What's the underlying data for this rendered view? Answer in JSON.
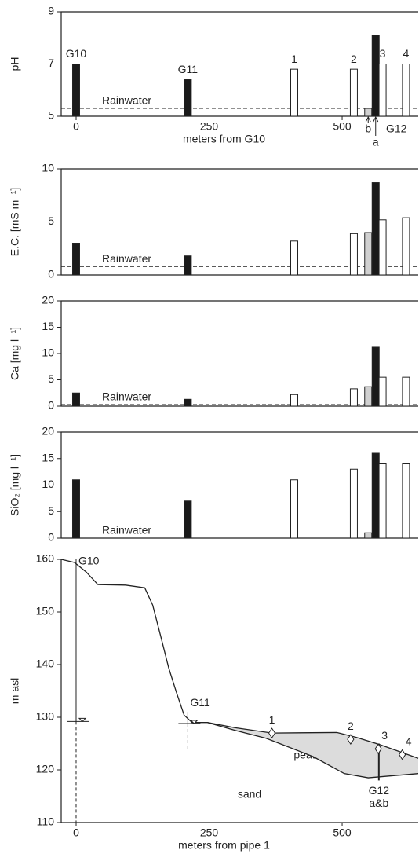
{
  "chart_data": [
    {
      "type": "bar",
      "ylabel": "pH",
      "xlabel": "meters from G10",
      "xlim": [
        -28,
        643
      ],
      "xticks": [
        0,
        250,
        500
      ],
      "ylim": [
        5,
        9
      ],
      "yticks": [
        5,
        7,
        9
      ],
      "x": [
        0,
        210,
        410,
        522,
        549,
        563,
        576,
        620
      ],
      "values": [
        7.0,
        6.4,
        6.8,
        6.8,
        5.3,
        8.1,
        7.0,
        7.0
      ],
      "colors": [
        "#1a1a1a",
        "#1a1a1a",
        "#ffffff",
        "#ffffff",
        "#d0d0d0",
        "#1a1a1a",
        "#ffffff",
        "#ffffff"
      ],
      "bar_labels": [
        "G10",
        "G11",
        "1",
        "2",
        null,
        null,
        "3",
        "4"
      ],
      "below_labels": [
        null,
        null,
        null,
        null,
        "b",
        "a",
        null,
        null
      ],
      "group_label": "G12",
      "rainwater": {
        "label": "Rainwater",
        "value": 5.3
      }
    },
    {
      "type": "bar",
      "ylabel": "E.C. [mS m⁻¹]",
      "xlim": [
        -28,
        643
      ],
      "ylim": [
        0,
        10
      ],
      "yticks": [
        0,
        5,
        10
      ],
      "x": [
        0,
        210,
        410,
        522,
        549,
        563,
        576,
        620
      ],
      "values": [
        3.0,
        1.8,
        3.2,
        3.9,
        4.0,
        8.7,
        5.2,
        5.4
      ],
      "colors": [
        "#1a1a1a",
        "#1a1a1a",
        "#ffffff",
        "#ffffff",
        "#d0d0d0",
        "#1a1a1a",
        "#ffffff",
        "#ffffff"
      ],
      "rainwater": {
        "label": "Rainwater",
        "value": 0.8
      }
    },
    {
      "type": "bar",
      "ylabel": "Ca [mg l⁻¹]",
      "xlim": [
        -28,
        643
      ],
      "ylim": [
        0,
        20
      ],
      "yticks": [
        0,
        5,
        10,
        15,
        20
      ],
      "x": [
        0,
        210,
        410,
        522,
        549,
        563,
        576,
        620
      ],
      "values": [
        2.5,
        1.3,
        2.2,
        3.3,
        3.7,
        11.2,
        5.5,
        5.5
      ],
      "colors": [
        "#1a1a1a",
        "#1a1a1a",
        "#ffffff",
        "#ffffff",
        "#d0d0d0",
        "#1a1a1a",
        "#ffffff",
        "#ffffff"
      ],
      "rainwater": {
        "label": "Rainwater",
        "value": 0.3
      }
    },
    {
      "type": "bar",
      "ylabel": "SiO₂ [mg l⁻¹]",
      "xlim": [
        -28,
        643
      ],
      "ylim": [
        0,
        20
      ],
      "yticks": [
        0,
        5,
        10,
        15,
        20
      ],
      "x": [
        0,
        210,
        410,
        522,
        549,
        563,
        576,
        620
      ],
      "values": [
        11,
        7,
        11,
        13,
        1,
        16,
        14,
        14
      ],
      "colors": [
        "#1a1a1a",
        "#1a1a1a",
        "#ffffff",
        "#ffffff",
        "#d0d0d0",
        "#1a1a1a",
        "#ffffff",
        "#ffffff"
      ],
      "rainwater": {
        "label": "Rainwater",
        "value": 0
      }
    },
    {
      "type": "profile",
      "ylabel": "m asl",
      "xlabel": "meters from pipe 1",
      "xlim": [
        -28,
        643
      ],
      "xticks": [
        0,
        250,
        500
      ],
      "ylim": [
        110,
        160
      ],
      "yticks": [
        110,
        120,
        130,
        140,
        150,
        160
      ],
      "surface": {
        "x": [
          -28,
          -3,
          19,
          41,
          93,
          129,
          144,
          159,
          174,
          188,
          203,
          218,
          247,
          299,
          368,
          490,
          526,
          571,
          643
        ],
        "y": [
          160,
          159.4,
          157.6,
          155.2,
          155.1,
          154.6,
          151.3,
          145.4,
          139.4,
          134.9,
          130.4,
          129,
          129,
          128,
          127,
          127.1,
          126.2,
          124.8,
          122.2
        ]
      },
      "peat_base": {
        "x": [
          247,
          299,
          357,
          446,
          504,
          549,
          643
        ],
        "y": [
          129,
          127.5,
          126,
          122.5,
          119.3,
          118.5,
          119.3
        ]
      },
      "wells": [
        {
          "label": "G10",
          "x": 0,
          "top": 160,
          "water": 129.2,
          "bottom": 110
        },
        {
          "label": "G11",
          "x": 210,
          "top": 131,
          "water": 128.8,
          "bottom": 124
        }
      ],
      "g12": {
        "labels": [
          "G12",
          "a&b"
        ],
        "x": 569,
        "top": 125,
        "bottom": 118
      },
      "points": [
        {
          "label": "1",
          "x": 368,
          "y": 127
        },
        {
          "label": "2",
          "x": 516,
          "y": 125.8
        },
        {
          "label": "3",
          "x": 568,
          "y": 124
        },
        {
          "label": "4",
          "x": 613,
          "y": 122.9
        }
      ],
      "annotations": [
        "peat",
        "sand"
      ]
    }
  ]
}
